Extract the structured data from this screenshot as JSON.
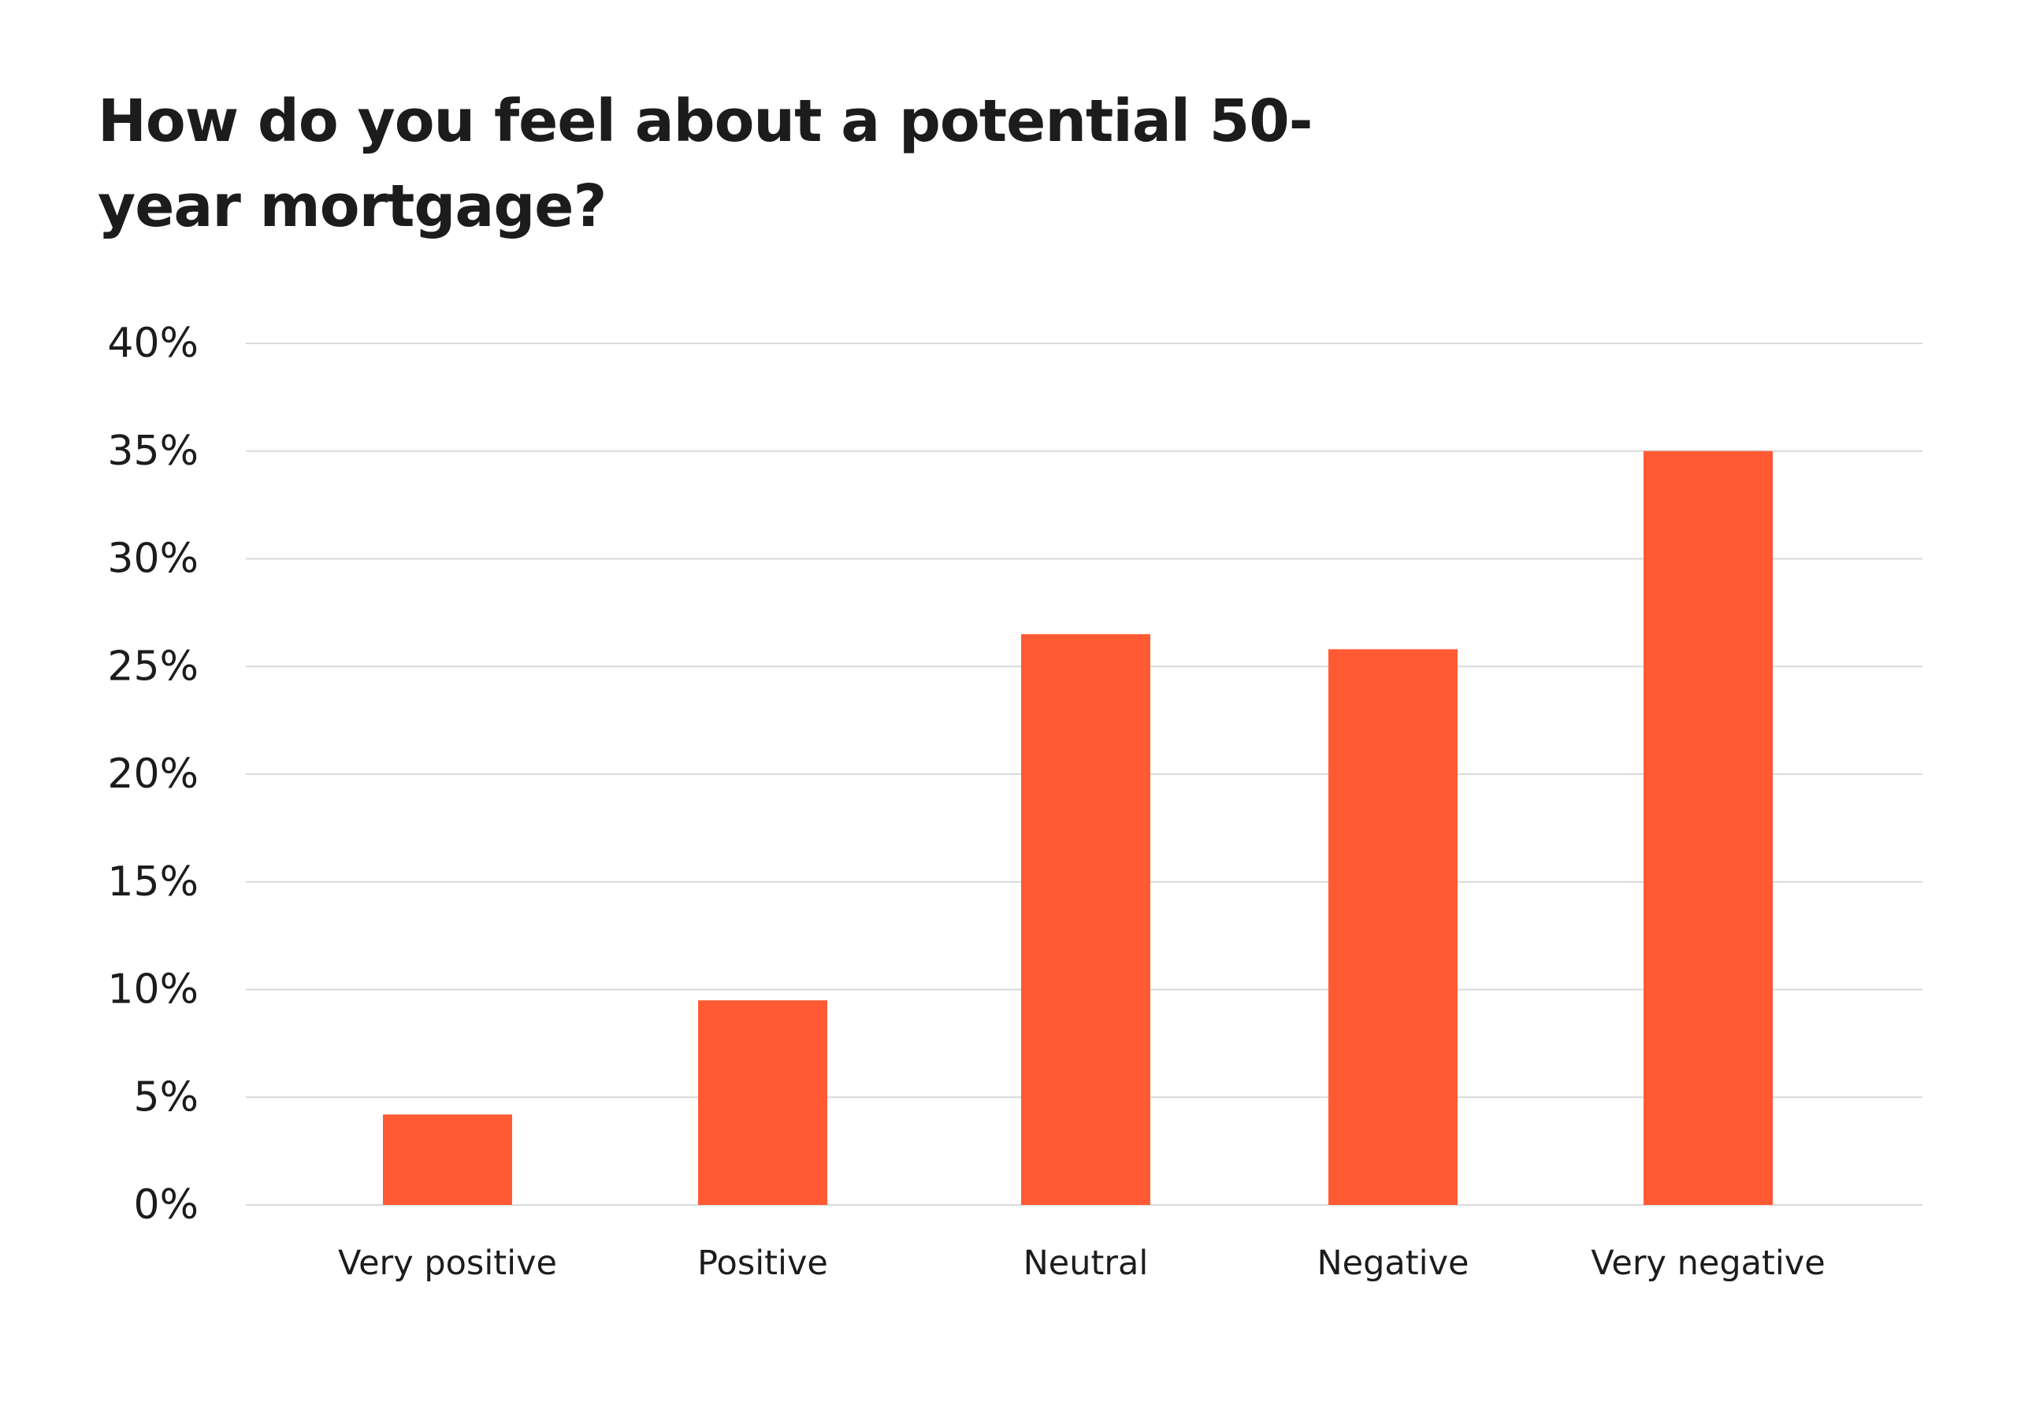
{
  "colors": {
    "bar": "#FF5A33",
    "grid": "#D9D9D9",
    "text": "#1C1C1C",
    "background": "#FFFFFF"
  },
  "chart_data": {
    "type": "bar",
    "title": "How do you feel about a potential 50-year mortgage?",
    "categories": [
      "Very positive",
      "Positive",
      "Neutral",
      "Negative",
      "Very negative"
    ],
    "values": [
      4.2,
      9.5,
      26.5,
      25.8,
      35.0
    ],
    "y_unit": "%",
    "ylim": [
      0,
      40
    ],
    "yticks": [
      0,
      5,
      10,
      15,
      20,
      25,
      30,
      35,
      40
    ],
    "ytick_labels": [
      "0%",
      "5%",
      "10%",
      "15%",
      "20%",
      "25%",
      "30%",
      "35%",
      "40%"
    ],
    "grid": true,
    "legend": "none"
  }
}
